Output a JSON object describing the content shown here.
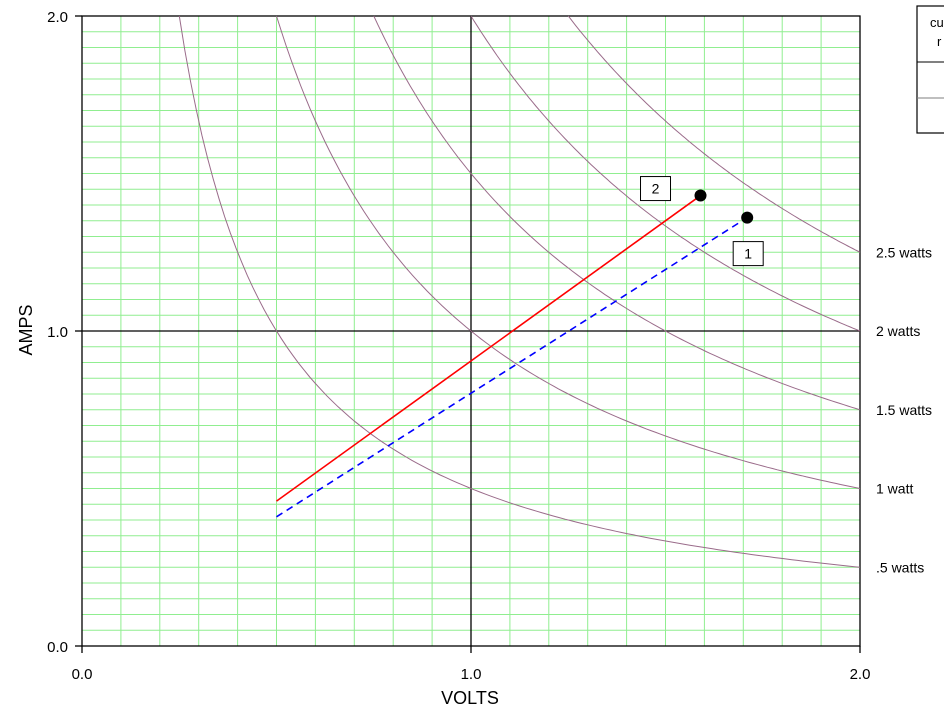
{
  "chart_data": {
    "type": "line",
    "xlabel": "VOLTS",
    "ylabel": "AMPS",
    "xlim": [
      0,
      2
    ],
    "ylim": [
      0,
      2
    ],
    "x_ticks": [
      "0.0",
      "1.0",
      "2.0"
    ],
    "y_ticks": [
      "0.0",
      "1.0",
      "2.0"
    ],
    "grid": true,
    "grid_color": "#90ee90",
    "major_line_color": "#000000",
    "curve_color": "#9a6b8a",
    "power_curves": [
      {
        "watts": 0.5,
        "label": ".5 watts"
      },
      {
        "watts": 1.0,
        "label": "1 watt"
      },
      {
        "watts": 1.5,
        "label": "1.5 watts"
      },
      {
        "watts": 2.0,
        "label": "2 watts"
      },
      {
        "watts": 2.5,
        "label": "2.5 watts"
      }
    ],
    "series": [
      {
        "tag": "1",
        "color": "#0000ff",
        "dash": "dashed",
        "x": [
          0.5,
          1.71
        ],
        "y": [
          0.41,
          1.36
        ]
      },
      {
        "tag": "2",
        "color": "#ff0000",
        "dash": "solid",
        "x": [
          0.5,
          1.59
        ],
        "y": [
          0.46,
          1.43
        ]
      }
    ],
    "legend": {
      "position": "top-right",
      "header_lines": [
        "cu",
        "r"
      ]
    }
  }
}
